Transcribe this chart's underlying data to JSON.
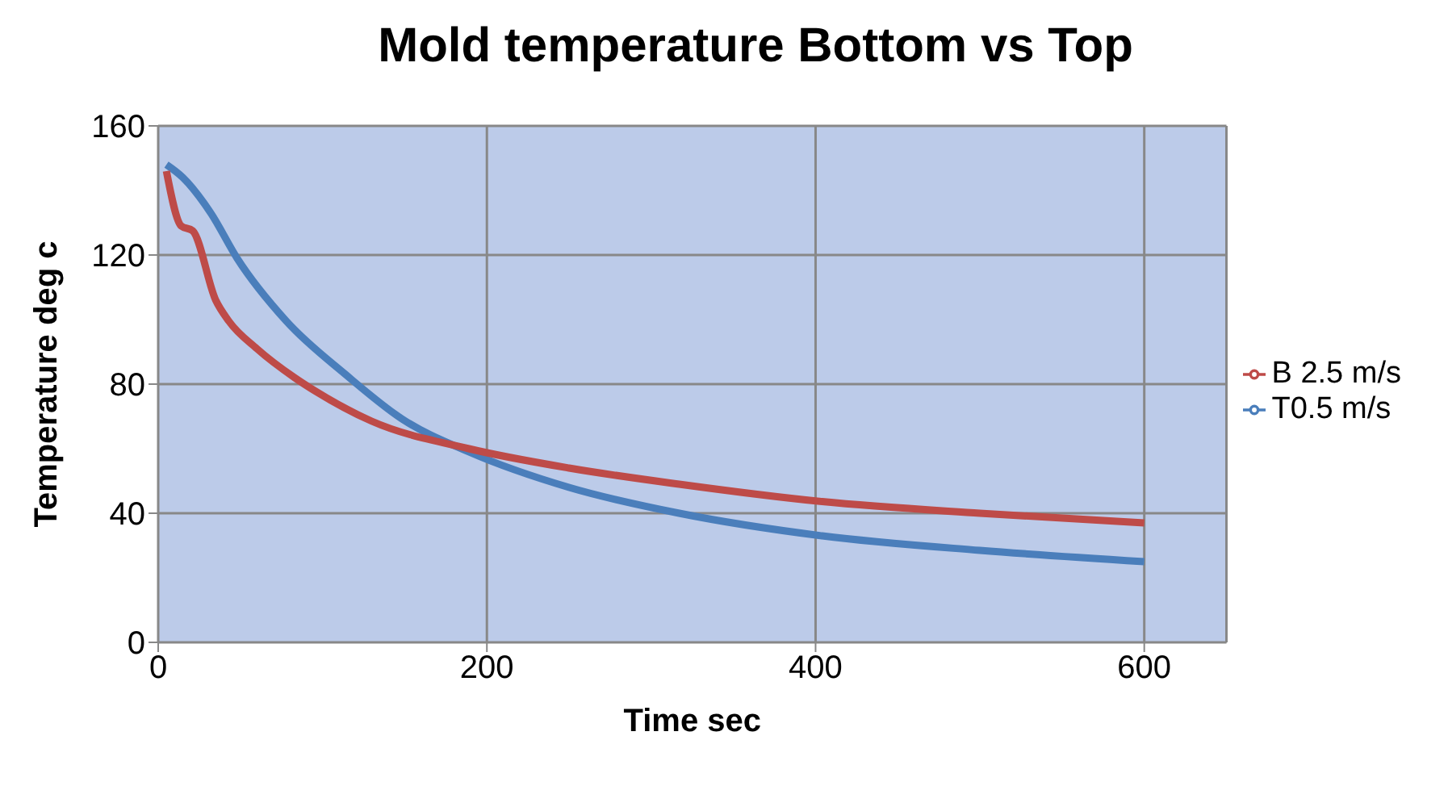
{
  "chart_data": {
    "type": "line",
    "title": "Mold temperature Bottom vs Top",
    "xlabel": "Time sec",
    "ylabel": "Temperature deg c",
    "xlim": [
      0,
      650
    ],
    "xticks": [
      0,
      200,
      400,
      600
    ],
    "ylim": [
      0,
      160
    ],
    "yticks": [
      0,
      40,
      80,
      120,
      160
    ],
    "grid": true,
    "legend": "right",
    "marker": "none",
    "series": [
      {
        "name": "T0.5 m/s",
        "color": "#4a7ebb",
        "x": [
          5,
          15,
          32,
          48,
          78,
          114,
          149,
          189,
          250,
          317,
          404,
          500,
          600
        ],
        "values": [
          148,
          144,
          133,
          119,
          99.5,
          83,
          69,
          59,
          48,
          40,
          33,
          28.5,
          25
        ]
      },
      {
        "name": "B 2.5 m/s",
        "color": "#be4b48",
        "x": [
          5,
          14,
          21,
          35,
          43,
          60,
          83,
          96,
          130,
          189,
          250,
          317,
          404,
          500,
          600
        ],
        "values": [
          146,
          129,
          127.5,
          106,
          99.5,
          91,
          82,
          77.7,
          68.5,
          60,
          54,
          49,
          43.6,
          40,
          37
        ]
      }
    ]
  }
}
